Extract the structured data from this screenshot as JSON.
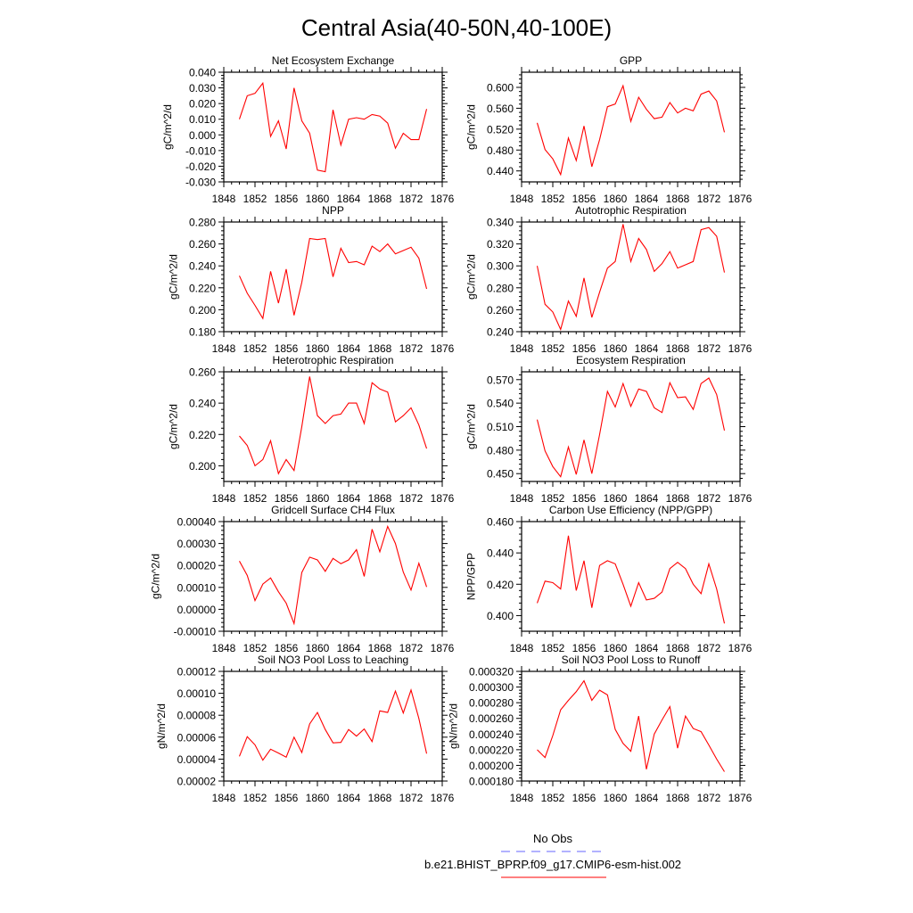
{
  "title": "Central Asia(40-50N,40-100E)",
  "line_color": "#ff0000",
  "obs_color": "#6666ff",
  "legend": [
    {
      "label": "No Obs",
      "style": "dashed",
      "color": "#6666ff"
    },
    {
      "label": "b.e21.BHIST_BPRP.f09_g17.CMIP6-esm-hist.002",
      "style": "solid",
      "color": "#ff0000"
    }
  ],
  "chart_data": [
    {
      "type": "line",
      "title": "Net Ecosystem Exchange",
      "ylabel": "gC/m^2/d",
      "x": [
        1850,
        1851,
        1852,
        1853,
        1854,
        1855,
        1856,
        1857,
        1858,
        1859,
        1860,
        1861,
        1862,
        1863,
        1864,
        1865,
        1866,
        1867,
        1868,
        1869,
        1870,
        1871,
        1872,
        1873,
        1874
      ],
      "values": [
        0.01,
        0.025,
        0.0265,
        0.033,
        -0.001,
        0.009,
        -0.009,
        0.03,
        0.009,
        0.001,
        -0.0225,
        -0.0235,
        0.016,
        -0.0065,
        0.01,
        0.011,
        0.01,
        0.013,
        0.012,
        0.0075,
        -0.0085,
        0.001,
        -0.003,
        -0.003,
        0.0165
      ],
      "xlim": [
        1848,
        1876
      ],
      "xticks": [
        "1848",
        "1852",
        "1856",
        "1860",
        "1864",
        "1868",
        "1872",
        "1876"
      ],
      "ylim": [
        -0.03,
        0.04
      ],
      "yticks": [
        "-0.030",
        "-0.020",
        "-0.010",
        "0.000",
        "0.010",
        "0.020",
        "0.030",
        "0.040"
      ]
    },
    {
      "type": "line",
      "title": "GPP",
      "ylabel": "gC/m^2/d",
      "x": [
        1850,
        1851,
        1852,
        1853,
        1854,
        1855,
        1856,
        1857,
        1858,
        1859,
        1860,
        1861,
        1862,
        1863,
        1864,
        1865,
        1866,
        1867,
        1868,
        1869,
        1870,
        1871,
        1872,
        1873,
        1874
      ],
      "values": [
        0.532,
        0.481,
        0.463,
        0.433,
        0.503,
        0.46,
        0.526,
        0.448,
        0.5,
        0.563,
        0.568,
        0.603,
        0.535,
        0.581,
        0.558,
        0.54,
        0.543,
        0.571,
        0.551,
        0.56,
        0.555,
        0.587,
        0.593,
        0.574,
        0.514
      ],
      "xlim": [
        1848,
        1876
      ],
      "xticks": [
        "1848",
        "1852",
        "1856",
        "1860",
        "1864",
        "1868",
        "1872",
        "1876"
      ],
      "ylim": [
        0.419,
        0.629
      ],
      "yticks": [
        "0.440",
        "0.480",
        "0.520",
        "0.560",
        "0.600"
      ]
    },
    {
      "type": "line",
      "title": "NPP",
      "ylabel": "gC/m^2/d",
      "x": [
        1850,
        1851,
        1852,
        1853,
        1854,
        1855,
        1856,
        1857,
        1858,
        1859,
        1860,
        1861,
        1862,
        1863,
        1864,
        1865,
        1866,
        1867,
        1868,
        1869,
        1870,
        1871,
        1872,
        1873,
        1874
      ],
      "values": [
        0.231,
        0.215,
        0.204,
        0.192,
        0.235,
        0.206,
        0.237,
        0.195,
        0.225,
        0.265,
        0.264,
        0.265,
        0.23,
        0.256,
        0.243,
        0.244,
        0.241,
        0.258,
        0.253,
        0.26,
        0.251,
        0.254,
        0.257,
        0.247,
        0.219
      ],
      "xlim": [
        1848,
        1876
      ],
      "xticks": [
        "1848",
        "1852",
        "1856",
        "1860",
        "1864",
        "1868",
        "1872",
        "1876"
      ],
      "ylim": [
        0.18,
        0.28
      ],
      "yticks": [
        "0.180",
        "0.200",
        "0.220",
        "0.240",
        "0.260",
        "0.280"
      ]
    },
    {
      "type": "line",
      "title": "Autotrophic Respiration",
      "ylabel": "gC/m^2/d",
      "x": [
        1850,
        1851,
        1852,
        1853,
        1854,
        1855,
        1856,
        1857,
        1858,
        1859,
        1860,
        1861,
        1862,
        1863,
        1864,
        1865,
        1866,
        1867,
        1868,
        1869,
        1870,
        1871,
        1872,
        1873,
        1874
      ],
      "values": [
        0.3,
        0.265,
        0.258,
        0.242,
        0.268,
        0.254,
        0.289,
        0.253,
        0.276,
        0.298,
        0.304,
        0.338,
        0.304,
        0.325,
        0.315,
        0.295,
        0.302,
        0.313,
        0.298,
        0.301,
        0.304,
        0.333,
        0.335,
        0.327,
        0.294
      ],
      "xlim": [
        1848,
        1876
      ],
      "xticks": [
        "1848",
        "1852",
        "1856",
        "1860",
        "1864",
        "1868",
        "1872",
        "1876"
      ],
      "ylim": [
        0.24,
        0.34
      ],
      "yticks": [
        "0.240",
        "0.260",
        "0.280",
        "0.300",
        "0.320",
        "0.340"
      ]
    },
    {
      "type": "line",
      "title": "Heterotrophic Respiration",
      "ylabel": "gC/m^2/d",
      "x": [
        1850,
        1851,
        1852,
        1853,
        1854,
        1855,
        1856,
        1857,
        1858,
        1859,
        1860,
        1861,
        1862,
        1863,
        1864,
        1865,
        1866,
        1867,
        1868,
        1869,
        1870,
        1871,
        1872,
        1873,
        1874
      ],
      "values": [
        0.219,
        0.213,
        0.2,
        0.204,
        0.216,
        0.195,
        0.204,
        0.197,
        0.225,
        0.257,
        0.232,
        0.227,
        0.232,
        0.233,
        0.24,
        0.24,
        0.227,
        0.253,
        0.249,
        0.247,
        0.228,
        0.232,
        0.237,
        0.226,
        0.211
      ],
      "xlim": [
        1848,
        1876
      ],
      "xticks": [
        "1848",
        "1852",
        "1856",
        "1860",
        "1864",
        "1868",
        "1872",
        "1876"
      ],
      "ylim": [
        0.19,
        0.26
      ],
      "yticks": [
        "0.200",
        "0.220",
        "0.240",
        "0.260"
      ]
    },
    {
      "type": "line",
      "title": "Ecosystem Respiration",
      "ylabel": "gC/m^2/d",
      "x": [
        1850,
        1851,
        1852,
        1853,
        1854,
        1855,
        1856,
        1857,
        1858,
        1859,
        1860,
        1861,
        1862,
        1863,
        1864,
        1865,
        1866,
        1867,
        1868,
        1869,
        1870,
        1871,
        1872,
        1873,
        1874
      ],
      "values": [
        0.519,
        0.479,
        0.459,
        0.446,
        0.484,
        0.449,
        0.493,
        0.45,
        0.5,
        0.555,
        0.535,
        0.565,
        0.536,
        0.558,
        0.555,
        0.534,
        0.528,
        0.566,
        0.547,
        0.548,
        0.532,
        0.565,
        0.572,
        0.551,
        0.505
      ],
      "xlim": [
        1848,
        1876
      ],
      "xticks": [
        "1848",
        "1852",
        "1856",
        "1860",
        "1864",
        "1868",
        "1872",
        "1876"
      ],
      "ylim": [
        0.44,
        0.58
      ],
      "yticks": [
        "0.450",
        "0.480",
        "0.510",
        "0.540",
        "0.570"
      ]
    },
    {
      "type": "line",
      "title": "Gridcell Surface CH4 Flux",
      "ylabel": "gC/m^2/d",
      "x": [
        1850,
        1851,
        1852,
        1853,
        1854,
        1855,
        1856,
        1857,
        1858,
        1859,
        1860,
        1861,
        1862,
        1863,
        1864,
        1865,
        1866,
        1867,
        1868,
        1869,
        1870,
        1871,
        1872,
        1873,
        1874
      ],
      "values": [
        0.00022,
        0.000155,
        4e-05,
        0.000115,
        0.000143,
        8e-05,
        2.8e-05,
        -6.5e-05,
        0.000168,
        0.000238,
        0.000225,
        0.000173,
        0.000232,
        0.000208,
        0.000225,
        0.000272,
        0.00015,
        0.000365,
        0.000262,
        0.000378,
        0.0003,
        0.00017,
        8.8e-05,
        0.00021,
        0.000102
      ],
      "xlim": [
        1848,
        1876
      ],
      "xticks": [
        "1848",
        "1852",
        "1856",
        "1860",
        "1864",
        "1868",
        "1872",
        "1876"
      ],
      "ylim": [
        -0.0001,
        0.0004
      ],
      "yticks": [
        "-0.00010",
        "0.00000",
        "0.00010",
        "0.00020",
        "0.00030",
        "0.00040"
      ]
    },
    {
      "type": "line",
      "title": "Carbon Use Efficiency (NPP/GPP)",
      "ylabel": "NPP/GPP",
      "x": [
        1850,
        1851,
        1852,
        1853,
        1854,
        1855,
        1856,
        1857,
        1858,
        1859,
        1860,
        1861,
        1862,
        1863,
        1864,
        1865,
        1866,
        1867,
        1868,
        1869,
        1870,
        1871,
        1872,
        1873,
        1874
      ],
      "values": [
        0.408,
        0.422,
        0.421,
        0.417,
        0.451,
        0.416,
        0.435,
        0.405,
        0.432,
        0.435,
        0.433,
        0.42,
        0.406,
        0.421,
        0.41,
        0.411,
        0.415,
        0.43,
        0.434,
        0.43,
        0.42,
        0.414,
        0.433,
        0.417,
        0.395
      ],
      "xlim": [
        1848,
        1876
      ],
      "xticks": [
        "1848",
        "1852",
        "1856",
        "1860",
        "1864",
        "1868",
        "1872",
        "1876"
      ],
      "ylim": [
        0.39,
        0.46
      ],
      "yticks": [
        "0.400",
        "0.420",
        "0.440",
        "0.460"
      ]
    },
    {
      "type": "line",
      "title": "Soil NO3 Pool Loss to Leaching",
      "ylabel": "gN/m^2/d",
      "x": [
        1850,
        1851,
        1852,
        1853,
        1854,
        1855,
        1856,
        1857,
        1858,
        1859,
        1860,
        1861,
        1862,
        1863,
        1864,
        1865,
        1866,
        1867,
        1868,
        1869,
        1870,
        1871,
        1872,
        1873,
        1874
      ],
      "values": [
        4.25e-05,
        6.05e-05,
        5.3e-05,
        3.9e-05,
        4.9e-05,
        4.55e-05,
        4.18e-05,
        6e-05,
        4.6e-05,
        7.2e-05,
        8.25e-05,
        6.7e-05,
        5.48e-05,
        5.52e-05,
        6.7e-05,
        6.1e-05,
        6.75e-05,
        5.6e-05,
        8.4e-05,
        8.25e-05,
        0.000102,
        8.2e-05,
        0.000103,
        7.7e-05,
        4.5e-05
      ],
      "xlim": [
        1848,
        1876
      ],
      "xticks": [
        "1848",
        "1852",
        "1856",
        "1860",
        "1864",
        "1868",
        "1872",
        "1876"
      ],
      "ylim": [
        2e-05,
        0.00012
      ],
      "yticks": [
        "0.00002",
        "0.00004",
        "0.00006",
        "0.00008",
        "0.00010",
        "0.00012"
      ]
    },
    {
      "type": "line",
      "title": "Soil NO3 Pool Loss to Runoff",
      "ylabel": "gN/m^2/d",
      "x": [
        1850,
        1851,
        1852,
        1853,
        1854,
        1855,
        1856,
        1857,
        1858,
        1859,
        1860,
        1861,
        1862,
        1863,
        1864,
        1865,
        1866,
        1867,
        1868,
        1869,
        1870,
        1871,
        1872,
        1873,
        1874
      ],
      "values": [
        0.00022,
        0.00021,
        0.000238,
        0.000271,
        0.000283,
        0.000294,
        0.000308,
        0.000283,
        0.000296,
        0.00029,
        0.000246,
        0.000228,
        0.000218,
        0.000263,
        0.000195,
        0.00024,
        0.000258,
        0.000275,
        0.000222,
        0.000263,
        0.000247,
        0.000243,
        0.000226,
        0.000208,
        0.000192
      ],
      "xlim": [
        1848,
        1876
      ],
      "xticks": [
        "1848",
        "1852",
        "1856",
        "1860",
        "1864",
        "1868",
        "1872",
        "1876"
      ],
      "ylim": [
        0.00018,
        0.00032
      ],
      "yticks": [
        "0.000180",
        "0.000200",
        "0.000220",
        "0.000240",
        "0.000260",
        "0.000280",
        "0.000300",
        "0.000320"
      ]
    }
  ]
}
